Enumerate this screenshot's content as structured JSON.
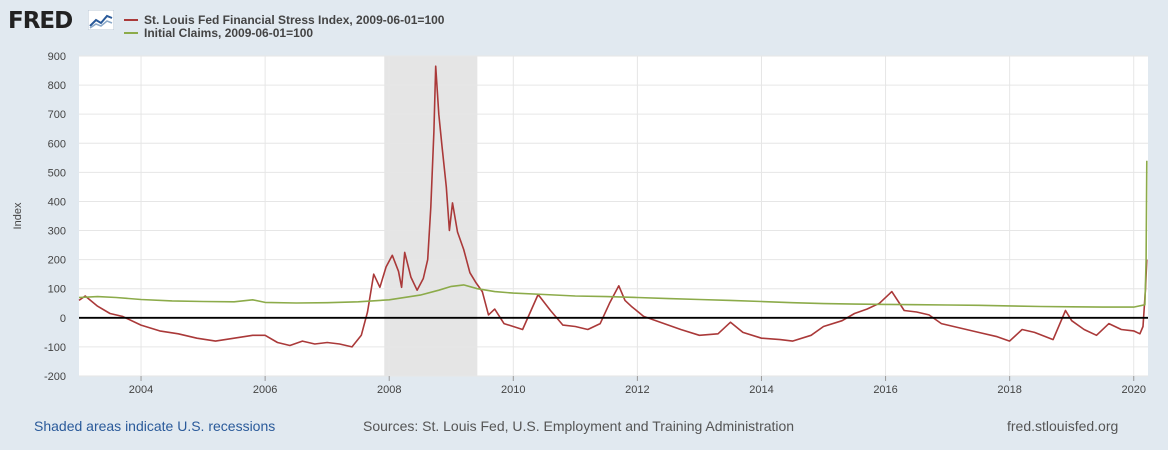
{
  "header": {
    "logo_text": "FRED",
    "logo_icon": "line-chart-icon"
  },
  "chart_data": {
    "type": "line",
    "ylabel": "Index",
    "ylim": [
      -200,
      900
    ],
    "xlim": [
      2003.0,
      2020.23
    ],
    "y_ticks": [
      900,
      800,
      700,
      600,
      500,
      400,
      300,
      200,
      100,
      0,
      -100,
      -200
    ],
    "x_ticks": [
      "2004",
      "2006",
      "2008",
      "2010",
      "2012",
      "2014",
      "2016",
      "2018",
      "2020"
    ],
    "grid": true,
    "legend_position": "top-left",
    "recession_shading": [
      [
        2007.92,
        2009.42
      ]
    ],
    "zero_line": 0,
    "series": [
      {
        "name": "St. Louis Fed Financial Stress Index, 2009-06-01=100",
        "color": "#aa3939",
        "points": [
          [
            2003.0,
            60
          ],
          [
            2003.1,
            75
          ],
          [
            2003.3,
            40
          ],
          [
            2003.5,
            15
          ],
          [
            2003.7,
            5
          ],
          [
            2004.0,
            -25
          ],
          [
            2004.3,
            -45
          ],
          [
            2004.6,
            -55
          ],
          [
            2004.9,
            -70
          ],
          [
            2005.2,
            -80
          ],
          [
            2005.5,
            -70
          ],
          [
            2005.8,
            -60
          ],
          [
            2006.0,
            -60
          ],
          [
            2006.2,
            -85
          ],
          [
            2006.4,
            -95
          ],
          [
            2006.6,
            -80
          ],
          [
            2006.8,
            -90
          ],
          [
            2007.0,
            -85
          ],
          [
            2007.2,
            -90
          ],
          [
            2007.4,
            -100
          ],
          [
            2007.55,
            -60
          ],
          [
            2007.65,
            20
          ],
          [
            2007.75,
            150
          ],
          [
            2007.85,
            105
          ],
          [
            2007.95,
            175
          ],
          [
            2008.05,
            215
          ],
          [
            2008.15,
            160
          ],
          [
            2008.2,
            105
          ],
          [
            2008.25,
            225
          ],
          [
            2008.35,
            140
          ],
          [
            2008.45,
            95
          ],
          [
            2008.55,
            135
          ],
          [
            2008.62,
            200
          ],
          [
            2008.67,
            380
          ],
          [
            2008.72,
            640
          ],
          [
            2008.75,
            865
          ],
          [
            2008.8,
            700
          ],
          [
            2008.85,
            590
          ],
          [
            2008.92,
            450
          ],
          [
            2008.97,
            300
          ],
          [
            2009.02,
            395
          ],
          [
            2009.1,
            295
          ],
          [
            2009.2,
            235
          ],
          [
            2009.3,
            155
          ],
          [
            2009.4,
            120
          ],
          [
            2009.5,
            90
          ],
          [
            2009.6,
            10
          ],
          [
            2009.7,
            30
          ],
          [
            2009.85,
            -20
          ],
          [
            2010.0,
            -30
          ],
          [
            2010.15,
            -40
          ],
          [
            2010.4,
            80
          ],
          [
            2010.6,
            25
          ],
          [
            2010.8,
            -25
          ],
          [
            2011.0,
            -30
          ],
          [
            2011.2,
            -40
          ],
          [
            2011.4,
            -20
          ],
          [
            2011.55,
            50
          ],
          [
            2011.7,
            110
          ],
          [
            2011.8,
            60
          ],
          [
            2011.9,
            40
          ],
          [
            2012.1,
            5
          ],
          [
            2012.3,
            -10
          ],
          [
            2012.5,
            -25
          ],
          [
            2012.7,
            -40
          ],
          [
            2013.0,
            -60
          ],
          [
            2013.3,
            -55
          ],
          [
            2013.5,
            -15
          ],
          [
            2013.7,
            -50
          ],
          [
            2014.0,
            -70
          ],
          [
            2014.3,
            -75
          ],
          [
            2014.5,
            -80
          ],
          [
            2014.8,
            -60
          ],
          [
            2015.0,
            -30
          ],
          [
            2015.3,
            -10
          ],
          [
            2015.5,
            15
          ],
          [
            2015.7,
            30
          ],
          [
            2015.9,
            50
          ],
          [
            2016.1,
            90
          ],
          [
            2016.3,
            25
          ],
          [
            2016.5,
            20
          ],
          [
            2016.7,
            10
          ],
          [
            2016.9,
            -20
          ],
          [
            2017.2,
            -35
          ],
          [
            2017.5,
            -50
          ],
          [
            2017.8,
            -65
          ],
          [
            2018.0,
            -80
          ],
          [
            2018.2,
            -40
          ],
          [
            2018.4,
            -50
          ],
          [
            2018.7,
            -75
          ],
          [
            2018.9,
            25
          ],
          [
            2019.0,
            -10
          ],
          [
            2019.2,
            -40
          ],
          [
            2019.4,
            -60
          ],
          [
            2019.6,
            -20
          ],
          [
            2019.8,
            -40
          ],
          [
            2020.0,
            -45
          ],
          [
            2020.1,
            -55
          ],
          [
            2020.15,
            -30
          ],
          [
            2020.19,
            100
          ],
          [
            2020.21,
            200
          ]
        ]
      },
      {
        "name": "Initial Claims, 2009-06-01=100",
        "color": "#8cab4a",
        "points": [
          [
            2003.0,
            70
          ],
          [
            2003.3,
            73
          ],
          [
            2003.6,
            70
          ],
          [
            2004.0,
            63
          ],
          [
            2004.5,
            58
          ],
          [
            2005.0,
            56
          ],
          [
            2005.5,
            55
          ],
          [
            2005.8,
            62
          ],
          [
            2006.0,
            53
          ],
          [
            2006.5,
            51
          ],
          [
            2007.0,
            52
          ],
          [
            2007.5,
            55
          ],
          [
            2008.0,
            62
          ],
          [
            2008.5,
            78
          ],
          [
            2008.8,
            95
          ],
          [
            2009.0,
            108
          ],
          [
            2009.2,
            113
          ],
          [
            2009.42,
            100
          ],
          [
            2009.7,
            90
          ],
          [
            2010.0,
            85
          ],
          [
            2010.5,
            80
          ],
          [
            2011.0,
            75
          ],
          [
            2011.5,
            73
          ],
          [
            2012.0,
            70
          ],
          [
            2012.5,
            66
          ],
          [
            2013.0,
            63
          ],
          [
            2013.5,
            60
          ],
          [
            2014.0,
            56
          ],
          [
            2014.5,
            52
          ],
          [
            2015.0,
            49
          ],
          [
            2015.5,
            47
          ],
          [
            2016.0,
            46
          ],
          [
            2016.5,
            45
          ],
          [
            2017.0,
            44
          ],
          [
            2017.5,
            43
          ],
          [
            2018.0,
            41
          ],
          [
            2018.5,
            39
          ],
          [
            2019.0,
            38
          ],
          [
            2019.5,
            37
          ],
          [
            2020.0,
            37
          ],
          [
            2020.18,
            45
          ],
          [
            2020.2,
            200
          ],
          [
            2020.21,
            540
          ]
        ]
      }
    ]
  },
  "footer": {
    "recession_note": "Shaded areas indicate U.S. recessions",
    "sources": "Sources: St. Louis Fed, U.S. Employment and Training Administration",
    "site": "fred.stlouisfed.org"
  }
}
